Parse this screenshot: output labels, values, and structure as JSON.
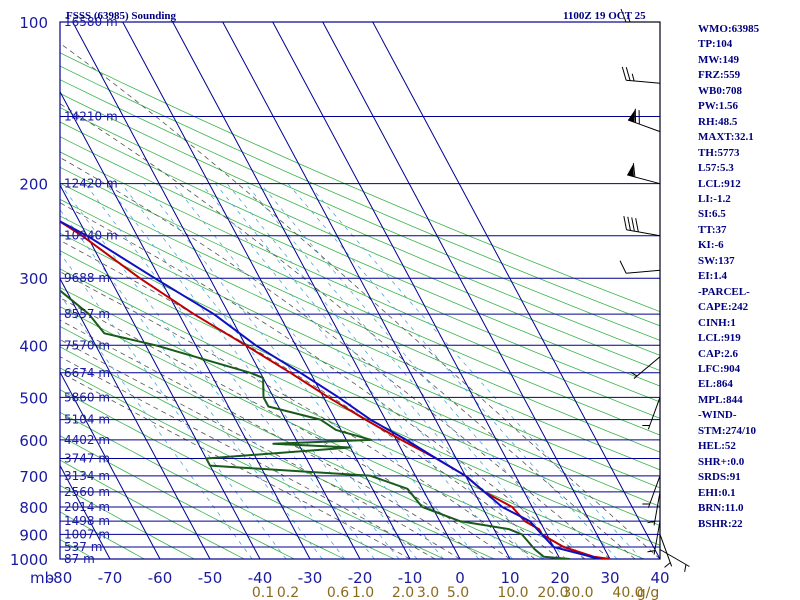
{
  "header": {
    "station": "FSSS (63985) Sounding",
    "time": "1100Z 19 OCT 25"
  },
  "indices": [
    "WMO:63985",
    "TP:104",
    "MW:149",
    "FRZ:559",
    "WB0:708",
    "PW:1.56",
    "RH:48.5",
    "MAXT:32.1",
    "TH:5773",
    "L57:5.3",
    "LCL:912",
    "LI:-1.2",
    "SI:6.5",
    "TT:37",
    "KI:-6",
    "SW:137",
    "EI:1.4",
    "-PARCEL-",
    "CAPE:242",
    "CINH:1",
    "LCL:919",
    "CAP:2.6",
    "LFC:904",
    "EL:864",
    "MPL:844",
    "-WIND-",
    "STM:274/10",
    "HEL:52",
    "SHR+:0.0",
    "SRDS:91",
    "EHI:0.1",
    "BRN:11.0",
    "BSHR:22"
  ],
  "colors": {
    "temperature": "#c00000",
    "dewpoint": "#1a5a1a",
    "parcel": "#1010c0",
    "grid": "#000090",
    "dry_adiabat": "#3cb44b",
    "moist_adiabat": "#555555",
    "mixing_ratio": "#4fa8d8",
    "wind_barb": "#000000"
  },
  "chart_data": {
    "type": "skew-t",
    "pressure_axis": {
      "unit_label": "mb",
      "range": [
        100,
        1000
      ],
      "ticks": [
        100,
        200,
        300,
        400,
        500,
        600,
        700,
        800,
        900,
        1000
      ]
    },
    "temperature_axis": {
      "range": [
        -80,
        40
      ],
      "ticks": [
        -80,
        -70,
        -60,
        -50,
        -40,
        -30,
        -20,
        -10,
        0,
        10,
        20,
        30,
        40
      ]
    },
    "height_labels": [
      {
        "p": 100,
        "label": "16580 m"
      },
      {
        "p": 150,
        "label": "14210 m"
      },
      {
        "p": 200,
        "label": "12420 m"
      },
      {
        "p": 250,
        "label": "10940 m"
      },
      {
        "p": 300,
        "label": "9688 m"
      },
      {
        "p": 350,
        "label": "8557 m"
      },
      {
        "p": 400,
        "label": "7570 m"
      },
      {
        "p": 450,
        "label": "6674 m"
      },
      {
        "p": 500,
        "label": "5860 m"
      },
      {
        "p": 550,
        "label": "5104 m"
      },
      {
        "p": 600,
        "label": "4402 m"
      },
      {
        "p": 650,
        "label": "3747 m"
      },
      {
        "p": 700,
        "label": "3134 m"
      },
      {
        "p": 750,
        "label": "2560 m"
      },
      {
        "p": 800,
        "label": "2014 m"
      },
      {
        "p": 850,
        "label": "1498 m"
      },
      {
        "p": 900,
        "label": "1007 m"
      },
      {
        "p": 950,
        "label": "537 m"
      },
      {
        "p": 1000,
        "label": "87 m"
      }
    ],
    "mixing_ratio_labels": [
      {
        "value": "0.1",
        "t": -40
      },
      {
        "value": "0.2",
        "t": -35
      },
      {
        "value": "0.6",
        "t": -25
      },
      {
        "value": "1.0",
        "t": -20
      },
      {
        "value": "2.0",
        "t": -12
      },
      {
        "value": "3.0",
        "t": -7
      },
      {
        "value": "5.0",
        "t": -1
      },
      {
        "value": "10.0",
        "t": 10
      },
      {
        "value": "20.0",
        "t": 18
      },
      {
        "value": "30.0",
        "t": 23
      },
      {
        "value": "40.0",
        "t": 33
      },
      {
        "value": "g/g",
        "t": 37
      }
    ],
    "series": [
      {
        "name": "temperature",
        "points": [
          {
            "p": 100,
            "t": -80
          },
          {
            "p": 130,
            "t": -70
          },
          {
            "p": 150,
            "t": -69
          },
          {
            "p": 175,
            "t": -60
          },
          {
            "p": 200,
            "t": -52
          },
          {
            "p": 230,
            "t": -45
          },
          {
            "p": 250,
            "t": -41
          },
          {
            "p": 300,
            "t": -34
          },
          {
            "p": 350,
            "t": -27
          },
          {
            "p": 400,
            "t": -20
          },
          {
            "p": 450,
            "t": -14
          },
          {
            "p": 500,
            "t": -9
          },
          {
            "p": 550,
            "t": -4
          },
          {
            "p": 600,
            "t": 1
          },
          {
            "p": 650,
            "t": 6
          },
          {
            "p": 700,
            "t": 10
          },
          {
            "p": 750,
            "t": 12
          },
          {
            "p": 800,
            "t": 16
          },
          {
            "p": 850,
            "t": 17
          },
          {
            "p": 880,
            "t": 19
          },
          {
            "p": 900,
            "t": 19
          },
          {
            "p": 950,
            "t": 22
          },
          {
            "p": 990,
            "t": 27
          },
          {
            "p": 1000,
            "t": 30
          }
        ]
      },
      {
        "name": "dewpoint",
        "points": [
          {
            "p": 165,
            "t": -80
          },
          {
            "p": 175,
            "t": -70
          },
          {
            "p": 180,
            "t": -68
          },
          {
            "p": 200,
            "t": -66
          },
          {
            "p": 230,
            "t": -63
          },
          {
            "p": 250,
            "t": -64
          },
          {
            "p": 270,
            "t": -58
          },
          {
            "p": 280,
            "t": -56
          },
          {
            "p": 300,
            "t": -53
          },
          {
            "p": 350,
            "t": -48
          },
          {
            "p": 380,
            "t": -47
          },
          {
            "p": 400,
            "t": -38
          },
          {
            "p": 450,
            "t": -22
          },
          {
            "p": 460,
            "t": -20
          },
          {
            "p": 500,
            "t": -22
          },
          {
            "p": 520,
            "t": -22
          },
          {
            "p": 550,
            "t": -13
          },
          {
            "p": 575,
            "t": -11
          },
          {
            "p": 600,
            "t": -5
          },
          {
            "p": 610,
            "t": -25
          },
          {
            "p": 620,
            "t": -10
          },
          {
            "p": 650,
            "t": -40
          },
          {
            "p": 670,
            "t": -40
          },
          {
            "p": 700,
            "t": -9
          },
          {
            "p": 740,
            "t": -3
          },
          {
            "p": 800,
            "t": -2
          },
          {
            "p": 850,
            "t": 4
          },
          {
            "p": 880,
            "t": 13
          },
          {
            "p": 900,
            "t": 15
          },
          {
            "p": 960,
            "t": 16
          },
          {
            "p": 990,
            "t": 17
          },
          {
            "p": 1000,
            "t": 22
          }
        ]
      },
      {
        "name": "parcel",
        "points": [
          {
            "p": 125,
            "t": -80
          },
          {
            "p": 150,
            "t": -74
          },
          {
            "p": 200,
            "t": -54
          },
          {
            "p": 250,
            "t": -40
          },
          {
            "p": 300,
            "t": -31
          },
          {
            "p": 350,
            "t": -23
          },
          {
            "p": 400,
            "t": -18
          },
          {
            "p": 450,
            "t": -12
          },
          {
            "p": 500,
            "t": -7
          },
          {
            "p": 550,
            "t": -3
          },
          {
            "p": 600,
            "t": 2
          },
          {
            "p": 650,
            "t": 6
          },
          {
            "p": 700,
            "t": 10
          },
          {
            "p": 800,
            "t": 14
          },
          {
            "p": 850,
            "t": 18
          },
          {
            "p": 900,
            "t": 19
          },
          {
            "p": 950,
            "t": 20
          },
          {
            "p": 1000,
            "t": 28
          }
        ]
      }
    ],
    "wind_barbs": [
      {
        "p": 100,
        "dir": 270,
        "spd": 15
      },
      {
        "p": 130,
        "dir": 275,
        "spd": 25
      },
      {
        "p": 160,
        "dir": 290,
        "spd": 70
      },
      {
        "p": 200,
        "dir": 285,
        "spd": 60
      },
      {
        "p": 250,
        "dir": 280,
        "spd": 40
      },
      {
        "p": 290,
        "dir": 265,
        "spd": 10
      },
      {
        "p": 420,
        "dir": 230,
        "spd": 5
      },
      {
        "p": 500,
        "dir": 200,
        "spd": 5
      },
      {
        "p": 700,
        "dir": 200,
        "spd": 5
      },
      {
        "p": 750,
        "dir": 190,
        "spd": 5
      },
      {
        "p": 850,
        "dir": 190,
        "spd": 5
      },
      {
        "p": 900,
        "dir": 160,
        "spd": 5
      },
      {
        "p": 960,
        "dir": 120,
        "spd": 5
      }
    ]
  }
}
